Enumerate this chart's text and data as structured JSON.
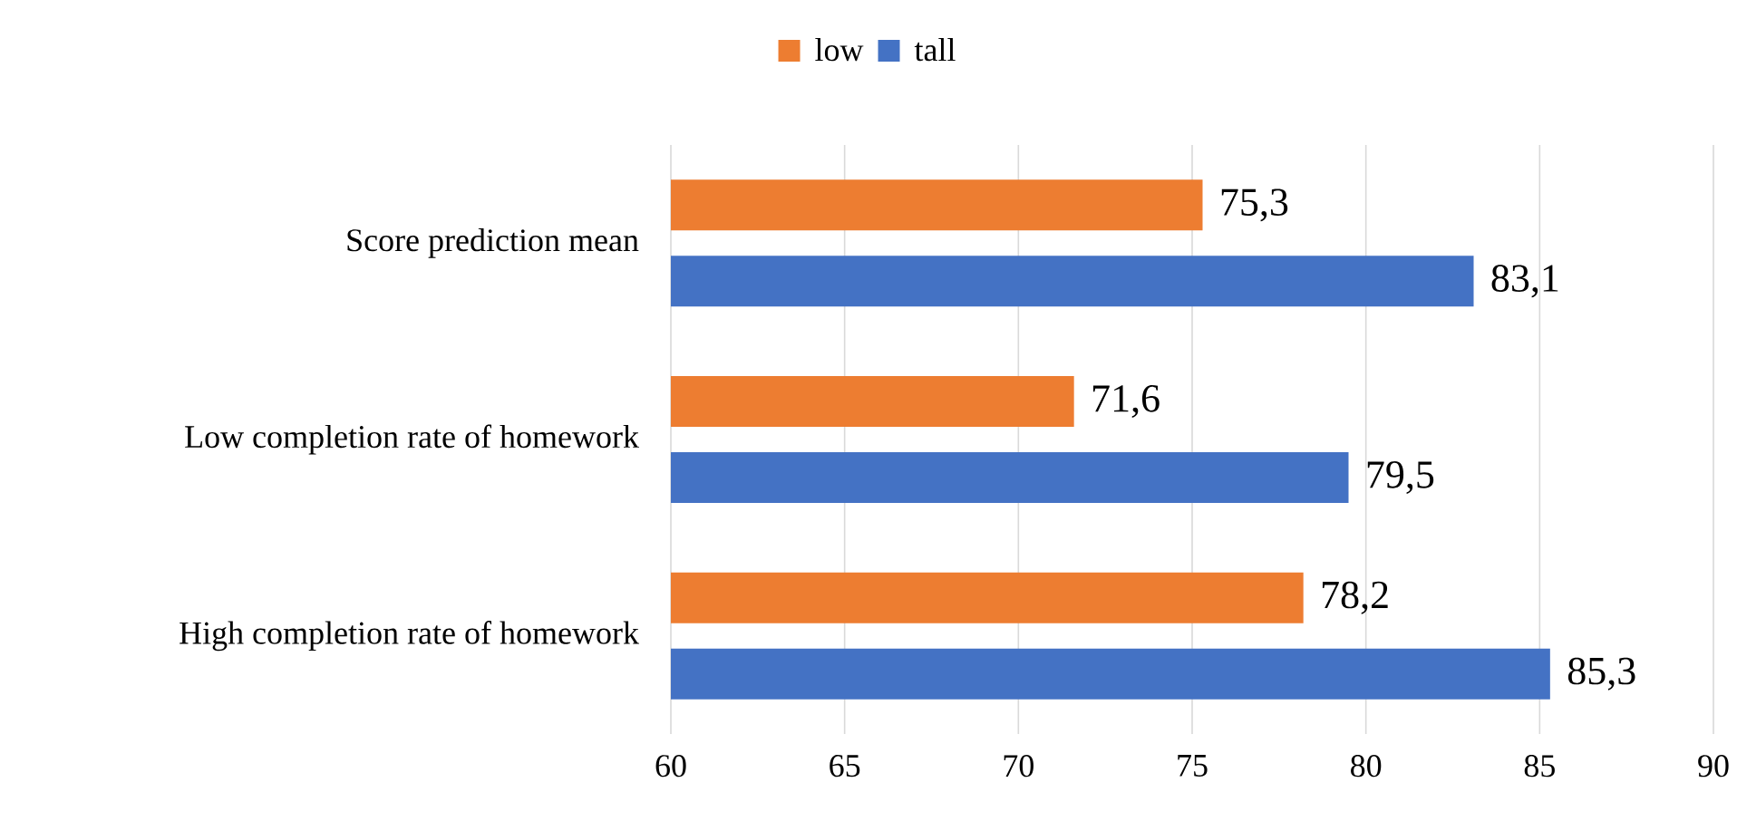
{
  "chart_data": {
    "type": "bar",
    "orientation": "horizontal",
    "categories": [
      "Score prediction mean",
      "Low completion rate of homework",
      "High completion rate of homework"
    ],
    "series": [
      {
        "name": "low",
        "color": "#ed7d31",
        "values": [
          75.3,
          71.6,
          78.2
        ],
        "value_labels": [
          "75,3",
          "71,6",
          "78,2"
        ]
      },
      {
        "name": "tall",
        "color": "#4472c4",
        "values": [
          83.1,
          79.5,
          85.3
        ],
        "value_labels": [
          "83,1",
          "79,5",
          "85,3"
        ]
      }
    ],
    "xlim": [
      60,
      90
    ],
    "xticks": [
      60,
      65,
      70,
      75,
      80,
      85,
      90
    ],
    "grid": "x",
    "legend": "top"
  }
}
